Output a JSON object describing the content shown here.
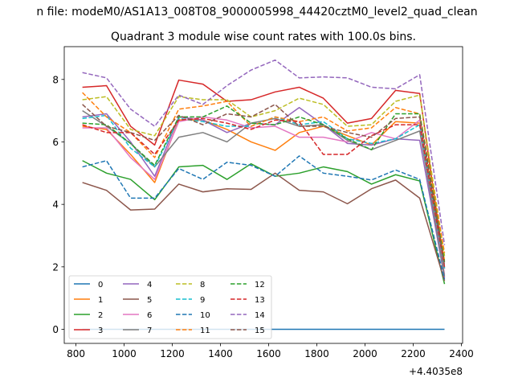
{
  "suptitle": "n file: modeM0/AS1A13_008T08_9000005998_44420cztM0_level2_quad_clean",
  "chart_data": {
    "type": "line",
    "title": "Quadrant 3 module wise count rates with 100.0s bins.",
    "xlabel": "",
    "ylabel": "",
    "x_offset_label": "+4.4035e8",
    "x_offset": 440350000,
    "xlim": [
      440350751.5,
      440352405
    ],
    "ylim": [
      -0.45,
      9.05
    ],
    "x_ticks": [
      440350800,
      440351000,
      440351200,
      440351400,
      440351600,
      440351800,
      440352000,
      440352200,
      440352400
    ],
    "x_tick_labels": [
      "800",
      "1000",
      "1200",
      "1400",
      "1600",
      "1800",
      "2000",
      "2200",
      "2400"
    ],
    "y_ticks": [
      0,
      2,
      4,
      6,
      8
    ],
    "y_tick_labels": [
      "0",
      "2",
      "4",
      "6",
      "8"
    ],
    "grid": false,
    "legend_position": "lower-left",
    "x": [
      440350826.9,
      440350926.9,
      440351026.9,
      440351126.9,
      440351226.9,
      440351326.9,
      440351426.9,
      440351526.9,
      440351626.9,
      440351726.9,
      440351826.9,
      440351926.9,
      440352026.9,
      440352126.9,
      440352226.9,
      440352330
    ],
    "series": [
      {
        "name": "0",
        "color": "#1f77b4",
        "dash": "solid",
        "values": [
          0,
          0,
          0,
          0,
          0,
          0,
          0,
          0,
          0,
          0,
          0,
          0,
          0,
          0,
          0,
          0
        ]
      },
      {
        "name": "1",
        "color": "#ff7f0e",
        "dash": "solid",
        "values": [
          6.5,
          6.4,
          5.6,
          4.7,
          6.7,
          6.7,
          6.4,
          6.0,
          5.73,
          6.3,
          6.5,
          6.2,
          5.9,
          6.65,
          6.6,
          2.2
        ]
      },
      {
        "name": "2",
        "color": "#2ca02c",
        "dash": "solid",
        "values": [
          5.4,
          5.0,
          4.8,
          4.15,
          5.2,
          5.25,
          4.8,
          5.3,
          4.9,
          5.0,
          5.2,
          5.05,
          4.65,
          4.95,
          4.75,
          1.45
        ]
      },
      {
        "name": "3",
        "color": "#d62728",
        "dash": "solid",
        "values": [
          7.75,
          7.8,
          6.5,
          5.9,
          7.98,
          7.85,
          7.3,
          7.35,
          7.6,
          7.75,
          7.4,
          6.6,
          6.75,
          7.65,
          7.55,
          1.95
        ]
      },
      {
        "name": "4",
        "color": "#9467bd",
        "dash": "solid",
        "values": [
          6.8,
          6.9,
          6.0,
          4.9,
          6.8,
          6.7,
          6.3,
          6.6,
          6.55,
          7.1,
          6.55,
          5.95,
          5.9,
          6.1,
          6.05,
          1.65
        ]
      },
      {
        "name": "5",
        "color": "#8c564b",
        "dash": "solid",
        "values": [
          4.7,
          4.45,
          3.82,
          3.85,
          4.65,
          4.4,
          4.5,
          4.48,
          5.0,
          4.45,
          4.4,
          4.02,
          4.5,
          4.78,
          4.2,
          1.55
        ]
      },
      {
        "name": "6",
        "color": "#e377c2",
        "dash": "solid",
        "values": [
          6.45,
          6.45,
          5.5,
          4.8,
          6.65,
          6.8,
          6.7,
          6.45,
          6.5,
          6.15,
          6.15,
          6.0,
          6.3,
          6.1,
          6.7,
          1.75
        ]
      },
      {
        "name": "7",
        "color": "#7f7f7f",
        "dash": "solid",
        "values": [
          7.0,
          6.5,
          5.95,
          5.2,
          6.15,
          6.3,
          6.0,
          6.6,
          6.75,
          6.5,
          6.55,
          6.05,
          5.75,
          6.05,
          6.35,
          1.7
        ]
      },
      {
        "name": "8",
        "color": "#bcbd22",
        "dash": "dashed",
        "values": [
          7.35,
          7.45,
          6.4,
          6.2,
          7.45,
          7.35,
          7.35,
          6.8,
          7.0,
          7.4,
          7.2,
          6.5,
          6.55,
          7.3,
          7.5,
          2.35
        ]
      },
      {
        "name": "9",
        "color": "#17becf",
        "dash": "dashed",
        "values": [
          6.75,
          6.85,
          5.8,
          5.2,
          6.75,
          6.65,
          6.5,
          6.5,
          6.8,
          6.55,
          6.65,
          6.1,
          5.95,
          6.1,
          6.55,
          1.95
        ]
      },
      {
        "name": "10",
        "color": "#1f77b4",
        "dash": "dashed",
        "values": [
          5.2,
          5.4,
          4.2,
          4.2,
          5.15,
          4.8,
          5.35,
          5.25,
          4.9,
          5.55,
          5.0,
          4.9,
          4.78,
          5.1,
          4.8,
          1.6
        ]
      },
      {
        "name": "11",
        "color": "#ff7f0e",
        "dash": "dashed",
        "values": [
          7.58,
          6.8,
          6.3,
          5.5,
          7.05,
          7.15,
          7.3,
          6.5,
          6.8,
          6.65,
          6.8,
          6.35,
          6.45,
          7.1,
          6.9,
          2.45
        ]
      },
      {
        "name": "12",
        "color": "#2ca02c",
        "dash": "dashed",
        "values": [
          6.6,
          6.55,
          5.95,
          5.25,
          6.8,
          6.8,
          7.15,
          6.6,
          6.55,
          6.8,
          6.55,
          6.1,
          5.75,
          6.9,
          6.9,
          2.15
        ]
      },
      {
        "name": "13",
        "color": "#d62728",
        "dash": "dashed",
        "values": [
          6.55,
          6.3,
          6.3,
          5.6,
          6.7,
          6.75,
          6.6,
          6.4,
          6.7,
          6.65,
          5.6,
          5.6,
          6.2,
          6.55,
          6.55,
          2.0
        ]
      },
      {
        "name": "14",
        "color": "#9467bd",
        "dash": "dashed",
        "values": [
          8.22,
          8.05,
          7.05,
          6.5,
          7.5,
          7.2,
          7.8,
          8.3,
          8.62,
          8.05,
          8.08,
          8.05,
          7.75,
          7.7,
          8.15,
          2.7
        ]
      },
      {
        "name": "15",
        "color": "#8c564b",
        "dash": "dashed",
        "values": [
          7.2,
          6.5,
          6.3,
          6.05,
          6.85,
          6.55,
          6.9,
          6.8,
          7.2,
          6.5,
          6.5,
          6.3,
          6.15,
          6.75,
          6.8,
          2.05
        ]
      }
    ]
  }
}
